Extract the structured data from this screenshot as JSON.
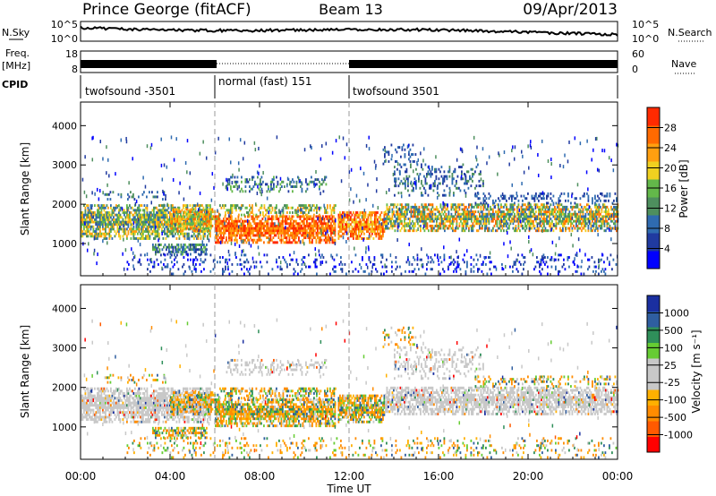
{
  "chart_data": {
    "type": "heatmap",
    "header": {
      "station": "Prince George (fitACF)",
      "beam": "Beam 13",
      "date": "09/Apr/2013"
    },
    "noise_panel": {
      "left_label": "N.Sky",
      "right_label": "N.Search",
      "left_ticks": [
        "10^5",
        "10^0"
      ],
      "right_ticks": [
        "10^5",
        "10^0"
      ]
    },
    "freq_panel": {
      "left_label_1": "Freq.",
      "left_label_2": "[MHz]",
      "right_label": "Nave",
      "left_ticks": [
        "18",
        "8"
      ],
      "right_ticks": [
        "60",
        "0"
      ]
    },
    "cpid_panel": {
      "label": "CPID",
      "segments": [
        {
          "label": "twofsound -3501",
          "start_hour": 0,
          "end_hour": 6
        },
        {
          "label": "normal (fast) 151",
          "start_hour": 6,
          "end_hour": 12
        },
        {
          "label": "twofsound 3501",
          "start_hour": 12,
          "end_hour": 24
        }
      ]
    },
    "x_axis": {
      "label": "Time UT",
      "range_hours": [
        0,
        24
      ],
      "tick_hours": [
        0,
        4,
        8,
        12,
        16,
        20,
        24
      ],
      "tick_labels": [
        "00:00",
        "04:00",
        "08:00",
        "12:00",
        "16:00",
        "20:00",
        "00:00"
      ]
    },
    "y_axis": {
      "label": "Slant Range [km]",
      "range_km": [
        180,
        4600
      ],
      "tick_km": [
        1000,
        2000,
        3000,
        4000
      ],
      "tick_labels": [
        "1000",
        "2000",
        "3000",
        "4000"
      ]
    },
    "power_panel": {
      "colorbar_label": "Power [dB]",
      "colorbar_ticks": [
        "28",
        "24",
        "20",
        "16",
        "12",
        "8",
        "4"
      ],
      "colorbar_colors": [
        "#0000ff",
        "#203aa0",
        "#2f6bb0",
        "#4e8f5e",
        "#63b84a",
        "#f0d020",
        "#ff9f10",
        "#ff6a00",
        "#ff2a00"
      ],
      "scale_db": [
        0,
        32
      ]
    },
    "velocity_panel": {
      "colorbar_label": "Velocity [m s⁻¹]",
      "colorbar_ticks": [
        "1000",
        "500",
        "100",
        "25",
        "-25",
        "-100",
        "-500",
        "-1000"
      ],
      "colorbar_colors": [
        "#ff0000",
        "#ff5a00",
        "#ff8c00",
        "#ffb000",
        "#c8c8c8",
        "#c8c8c8",
        "#66cc33",
        "#2f8f5a",
        "#2f5ea0",
        "#1a2fa0"
      ],
      "ground_scatter_color": "#c8c8c8"
    }
  }
}
